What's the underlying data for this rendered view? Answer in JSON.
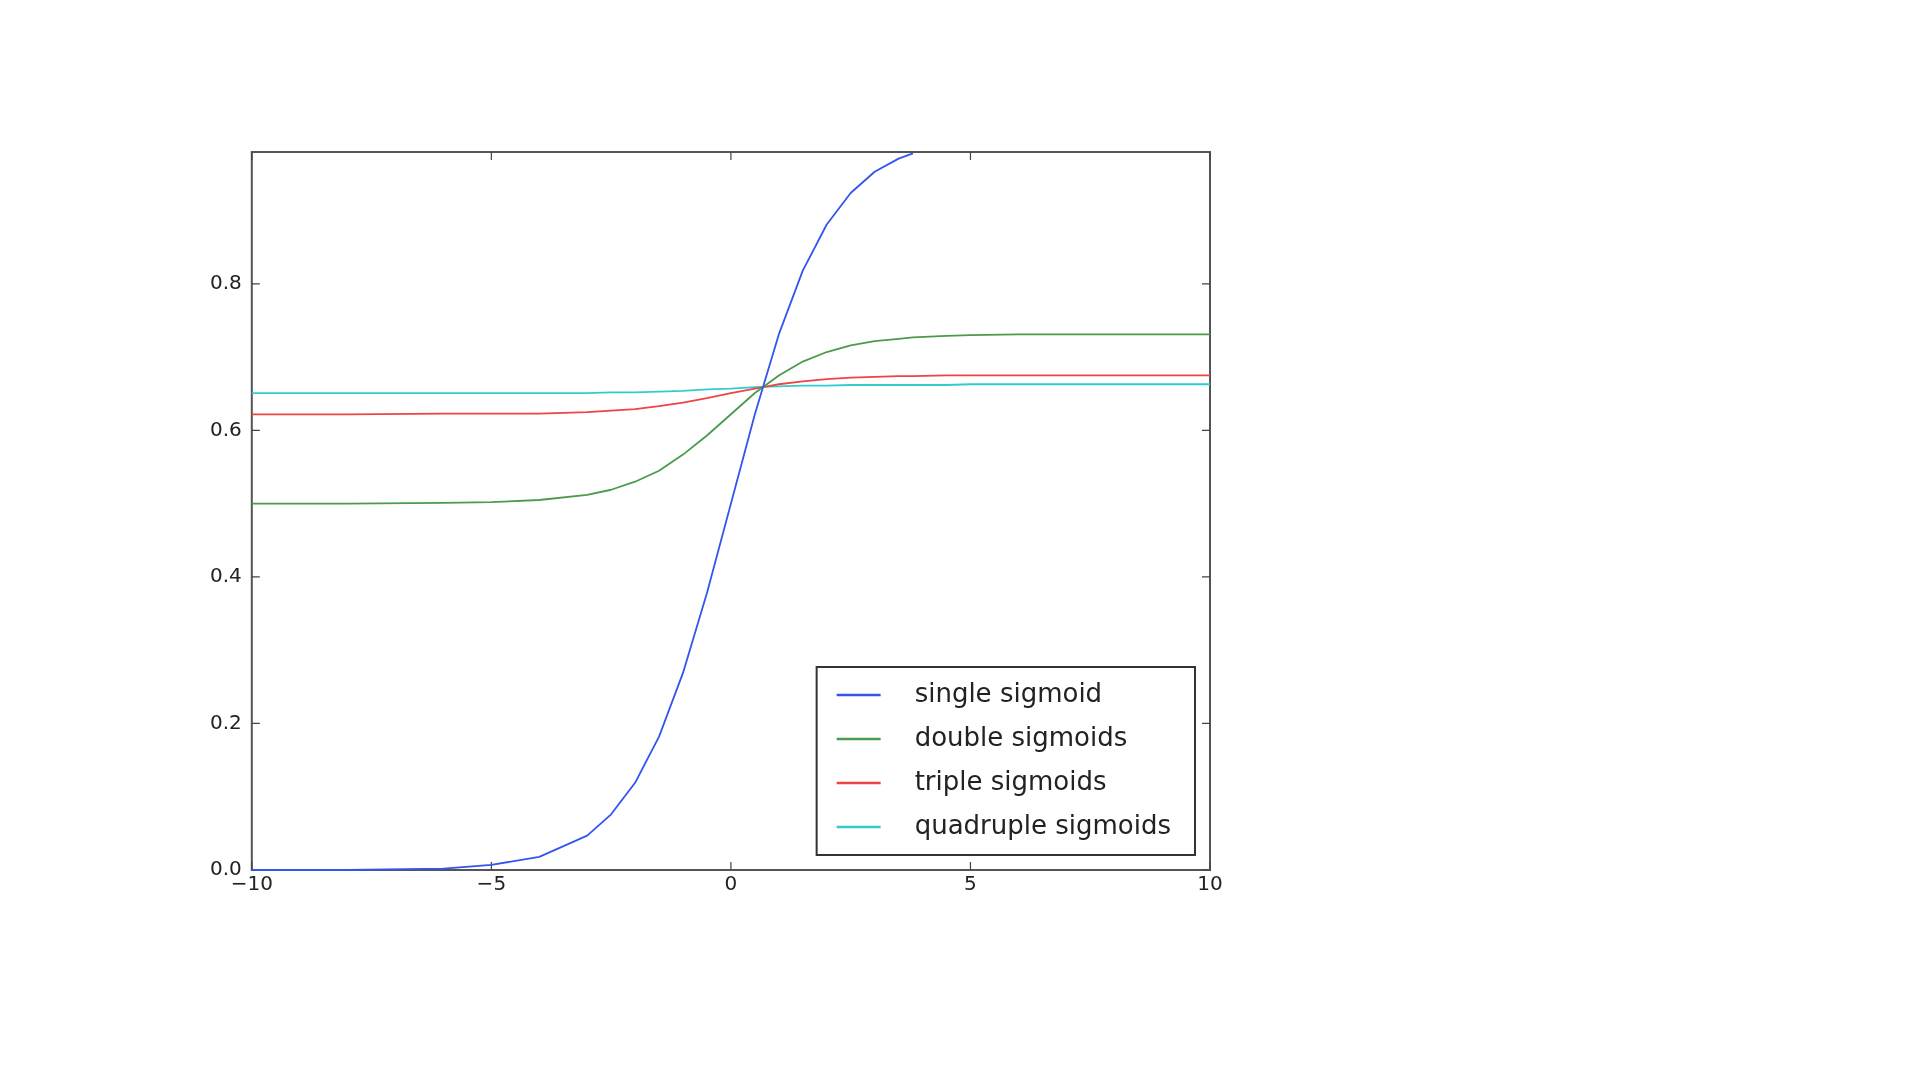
{
  "chart_data": {
    "type": "line",
    "x": [
      -10,
      -8,
      -6,
      -5,
      -4,
      -3,
      -2.5,
      -2,
      -1.5,
      -1,
      -0.5,
      0,
      0.5,
      1,
      1.5,
      2,
      2.5,
      3,
      3.5,
      3.8,
      4.5,
      5,
      6,
      8,
      10
    ],
    "series": [
      {
        "name": "single sigmoid",
        "color": "#3355ee",
        "values": [
          0.0,
          0.0,
          0.002,
          0.007,
          0.018,
          0.047,
          0.076,
          0.119,
          0.182,
          0.269,
          0.378,
          0.5,
          0.622,
          0.731,
          0.818,
          0.881,
          0.924,
          0.953,
          0.971,
          0.978,
          null,
          null,
          null,
          null,
          null
        ]
      },
      {
        "name": "double sigmoids",
        "color": "#4c9a4c",
        "values": [
          0.5,
          0.5,
          0.501,
          0.502,
          0.505,
          0.512,
          0.519,
          0.53,
          0.545,
          0.567,
          0.593,
          0.622,
          0.651,
          0.675,
          0.694,
          0.707,
          0.716,
          0.722,
          0.725,
          0.727,
          0.729,
          0.73,
          0.731,
          0.731,
          0.731
        ]
      },
      {
        "name": "triple sigmoids",
        "color": "#ee4444",
        "values": [
          0.622,
          0.622,
          0.623,
          0.623,
          0.623,
          0.625,
          0.627,
          0.629,
          0.633,
          0.638,
          0.644,
          0.651,
          0.657,
          0.663,
          0.667,
          0.67,
          0.672,
          0.673,
          0.674,
          0.674,
          0.675,
          0.675,
          0.675,
          0.675,
          0.675
        ]
      },
      {
        "name": "quadruple sigmoids",
        "color": "#33cccc",
        "values": [
          0.651,
          0.651,
          0.651,
          0.651,
          0.651,
          0.651,
          0.652,
          0.652,
          0.653,
          0.654,
          0.656,
          0.657,
          0.659,
          0.66,
          0.661,
          0.661,
          0.662,
          0.662,
          0.662,
          0.662,
          0.662,
          0.663,
          0.663,
          0.663,
          0.663
        ]
      }
    ],
    "xlim": [
      -10,
      10
    ],
    "xticks": [
      {
        "value": -10,
        "label": "−10"
      },
      {
        "value": -5,
        "label": "−5"
      },
      0,
      5,
      10
    ],
    "ylim": [
      0,
      0.98
    ],
    "yticks": [
      {
        "value": 0,
        "label": "0.0"
      },
      {
        "value": 0.2,
        "label": "0.2"
      },
      {
        "value": 0.4,
        "label": "0.4"
      },
      {
        "value": 0.6,
        "label": "0.6"
      },
      {
        "value": 0.8,
        "label": "0.8"
      }
    ],
    "grid": false,
    "legend": "bottom right",
    "marker": "none",
    "line_style": "solid"
  }
}
